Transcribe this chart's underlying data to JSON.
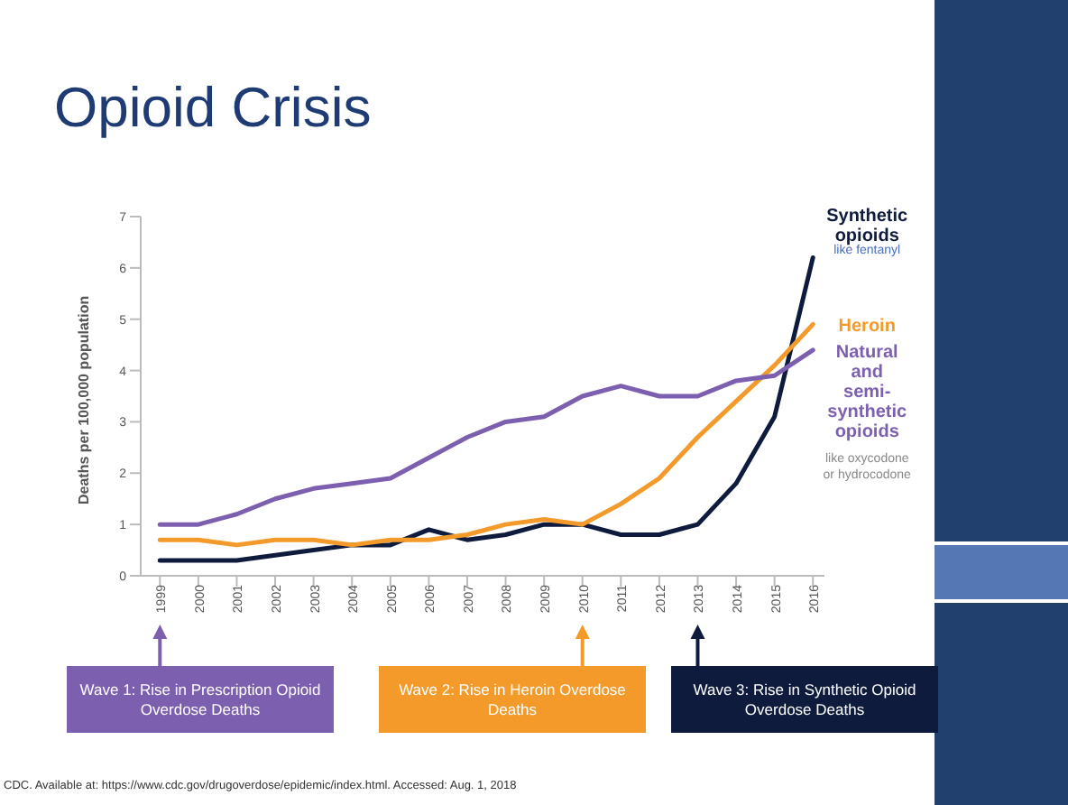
{
  "chart_data": {
    "type": "line",
    "title": "Opioid Crisis",
    "ylabel": "Deaths per 100,000 population",
    "categories": [
      "1999",
      "2000",
      "2001",
      "2002",
      "2003",
      "2004",
      "2005",
      "2006",
      "2007",
      "2008",
      "2009",
      "2010",
      "2011",
      "2012",
      "2013",
      "2014",
      "2015",
      "2016"
    ],
    "series": [
      {
        "name": "Synthetic opioids",
        "color": "#0f1b3d",
        "values": [
          0.3,
          0.3,
          0.3,
          0.4,
          0.5,
          0.6,
          0.6,
          0.9,
          0.7,
          0.8,
          1.0,
          1.0,
          0.8,
          0.8,
          1.0,
          1.8,
          3.1,
          6.2
        ]
      },
      {
        "name": "Heroin",
        "color": "#f39a2a",
        "values": [
          0.7,
          0.7,
          0.6,
          0.7,
          0.7,
          0.6,
          0.7,
          0.7,
          0.8,
          1.0,
          1.1,
          1.0,
          1.4,
          1.9,
          2.7,
          3.4,
          4.1,
          4.9
        ]
      },
      {
        "name": "Natural and semi-synthetic opioids",
        "color": "#7d5fb0",
        "values": [
          1.0,
          1.0,
          1.2,
          1.5,
          1.7,
          1.8,
          1.9,
          2.3,
          2.7,
          3.0,
          3.1,
          3.5,
          3.7,
          3.5,
          3.5,
          3.8,
          3.9,
          4.4
        ]
      }
    ],
    "ylim": [
      0,
      7
    ],
    "yticks": [
      0,
      1,
      2,
      3,
      4,
      5,
      6,
      7
    ],
    "marker": "none",
    "line_style": "solid",
    "annotations": [
      "like fentanyl",
      "like oxycodone or hydrocodone",
      "Wave 1: Rise in Prescription Opioid Overdose Deaths",
      "Wave 2: Rise in Heroin Overdose Deaths",
      "Wave 3: Rise in Synthetic Opioid Overdose Deaths",
      "CDC. Available at: https://www.cdc.gov/drugoverdose/epidemic/index.html. Accessed: Aug. 1, 2018"
    ]
  }
}
